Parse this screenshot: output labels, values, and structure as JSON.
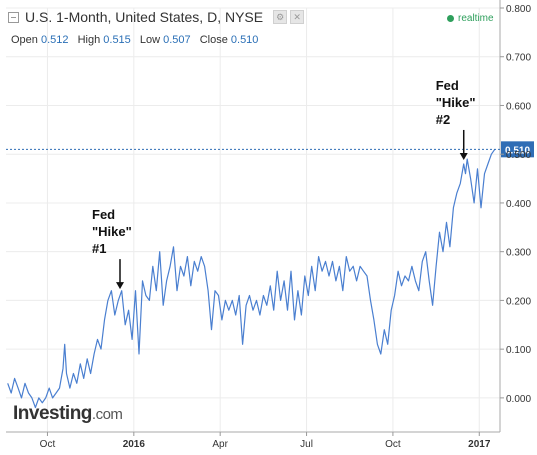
{
  "header": {
    "title": "U.S. 1-Month, United States, D, NYSE",
    "open_label": "Open",
    "open": "0.512",
    "high_label": "High",
    "high": "0.515",
    "low_label": "Low",
    "low": "0.507",
    "close_label": "Close",
    "close": "0.510",
    "realtime": "realtime"
  },
  "logo": {
    "brand": "Investing",
    "domain": ".com"
  },
  "annotations": [
    {
      "lines": [
        "Fed",
        "\"Hike\"",
        "#1"
      ],
      "x": 2015.96,
      "y": 0.215
    },
    {
      "lines": [
        "Fed",
        "\"Hike\"",
        "#2"
      ],
      "x": 2016.955,
      "y": 0.48
    }
  ],
  "colors": {
    "line": "#4a7fd0",
    "current": "#2f6db5",
    "axis": "#aaaaaa"
  },
  "chart_data": {
    "type": "line",
    "title": "U.S. 1-Month, United States, D, NYSE",
    "ylim": [
      -0.07,
      0.8
    ],
    "yticks": [
      0.0,
      0.1,
      0.2,
      0.3,
      0.4,
      0.5,
      0.6,
      0.7,
      0.8
    ],
    "ytick_labels": [
      "0.000",
      "0.100",
      "0.200",
      "0.300",
      "0.400",
      "0.500",
      "0.600",
      "0.700",
      "0.800"
    ],
    "xlim": [
      2015.63,
      2017.06
    ],
    "xticks": [
      2015.75,
      2016.0,
      2016.25,
      2016.5,
      2016.75,
      2017.0
    ],
    "xtick_labels": [
      "Oct",
      "2016",
      "Apr",
      "Jul",
      "Oct",
      "2017"
    ],
    "current_value": 0.51,
    "current_label": "0.510",
    "grid": true,
    "series": [
      {
        "values": [
          [
            2015.635,
            0.03
          ],
          [
            2015.645,
            0.01
          ],
          [
            2015.655,
            0.04
          ],
          [
            2015.665,
            0.02
          ],
          [
            2015.675,
            0.0
          ],
          [
            2015.685,
            0.03
          ],
          [
            2015.695,
            0.01
          ],
          [
            2015.705,
            0.0
          ],
          [
            2015.715,
            -0.02
          ],
          [
            2015.725,
            0.0
          ],
          [
            2015.735,
            -0.01
          ],
          [
            2015.745,
            0.0
          ],
          [
            2015.755,
            0.02
          ],
          [
            2015.765,
            0.0
          ],
          [
            2015.775,
            0.01
          ],
          [
            2015.785,
            0.02
          ],
          [
            2015.795,
            0.06
          ],
          [
            2015.8,
            0.11
          ],
          [
            2015.805,
            0.05
          ],
          [
            2015.815,
            0.02
          ],
          [
            2015.825,
            0.05
          ],
          [
            2015.835,
            0.03
          ],
          [
            2015.845,
            0.07
          ],
          [
            2015.855,
            0.04
          ],
          [
            2015.865,
            0.08
          ],
          [
            2015.875,
            0.05
          ],
          [
            2015.885,
            0.09
          ],
          [
            2015.895,
            0.12
          ],
          [
            2015.905,
            0.1
          ],
          [
            2015.915,
            0.16
          ],
          [
            2015.925,
            0.2
          ],
          [
            2015.935,
            0.22
          ],
          [
            2015.945,
            0.17
          ],
          [
            2015.955,
            0.2
          ],
          [
            2015.965,
            0.22
          ],
          [
            2015.975,
            0.15
          ],
          [
            2015.985,
            0.18
          ],
          [
            2015.995,
            0.12
          ],
          [
            2016.005,
            0.22
          ],
          [
            2016.015,
            0.09
          ],
          [
            2016.025,
            0.24
          ],
          [
            2016.035,
            0.21
          ],
          [
            2016.045,
            0.2
          ],
          [
            2016.055,
            0.27
          ],
          [
            2016.065,
            0.22
          ],
          [
            2016.075,
            0.3
          ],
          [
            2016.085,
            0.19
          ],
          [
            2016.095,
            0.24
          ],
          [
            2016.105,
            0.27
          ],
          [
            2016.115,
            0.31
          ],
          [
            2016.125,
            0.22
          ],
          [
            2016.135,
            0.27
          ],
          [
            2016.145,
            0.25
          ],
          [
            2016.155,
            0.29
          ],
          [
            2016.165,
            0.23
          ],
          [
            2016.175,
            0.28
          ],
          [
            2016.185,
            0.26
          ],
          [
            2016.195,
            0.29
          ],
          [
            2016.205,
            0.27
          ],
          [
            2016.215,
            0.22
          ],
          [
            2016.225,
            0.14
          ],
          [
            2016.235,
            0.22
          ],
          [
            2016.245,
            0.21
          ],
          [
            2016.255,
            0.16
          ],
          [
            2016.265,
            0.2
          ],
          [
            2016.275,
            0.18
          ],
          [
            2016.285,
            0.2
          ],
          [
            2016.295,
            0.17
          ],
          [
            2016.305,
            0.21
          ],
          [
            2016.315,
            0.11
          ],
          [
            2016.325,
            0.19
          ],
          [
            2016.335,
            0.21
          ],
          [
            2016.345,
            0.18
          ],
          [
            2016.355,
            0.2
          ],
          [
            2016.365,
            0.17
          ],
          [
            2016.375,
            0.21
          ],
          [
            2016.385,
            0.19
          ],
          [
            2016.395,
            0.23
          ],
          [
            2016.405,
            0.18
          ],
          [
            2016.415,
            0.26
          ],
          [
            2016.425,
            0.2
          ],
          [
            2016.435,
            0.24
          ],
          [
            2016.445,
            0.18
          ],
          [
            2016.455,
            0.26
          ],
          [
            2016.465,
            0.16
          ],
          [
            2016.475,
            0.22
          ],
          [
            2016.485,
            0.17
          ],
          [
            2016.495,
            0.25
          ],
          [
            2016.505,
            0.21
          ],
          [
            2016.515,
            0.27
          ],
          [
            2016.525,
            0.22
          ],
          [
            2016.535,
            0.29
          ],
          [
            2016.545,
            0.26
          ],
          [
            2016.555,
            0.28
          ],
          [
            2016.565,
            0.25
          ],
          [
            2016.575,
            0.28
          ],
          [
            2016.585,
            0.24
          ],
          [
            2016.595,
            0.27
          ],
          [
            2016.605,
            0.22
          ],
          [
            2016.615,
            0.29
          ],
          [
            2016.625,
            0.26
          ],
          [
            2016.635,
            0.27
          ],
          [
            2016.645,
            0.24
          ],
          [
            2016.655,
            0.27
          ],
          [
            2016.665,
            0.26
          ],
          [
            2016.675,
            0.25
          ],
          [
            2016.685,
            0.2
          ],
          [
            2016.695,
            0.16
          ],
          [
            2016.705,
            0.11
          ],
          [
            2016.715,
            0.09
          ],
          [
            2016.725,
            0.14
          ],
          [
            2016.735,
            0.11
          ],
          [
            2016.745,
            0.18
          ],
          [
            2016.755,
            0.21
          ],
          [
            2016.765,
            0.26
          ],
          [
            2016.775,
            0.23
          ],
          [
            2016.785,
            0.25
          ],
          [
            2016.795,
            0.24
          ],
          [
            2016.805,
            0.27
          ],
          [
            2016.815,
            0.24
          ],
          [
            2016.825,
            0.22
          ],
          [
            2016.835,
            0.28
          ],
          [
            2016.845,
            0.3
          ],
          [
            2016.855,
            0.24
          ],
          [
            2016.865,
            0.19
          ],
          [
            2016.875,
            0.27
          ],
          [
            2016.885,
            0.34
          ],
          [
            2016.895,
            0.3
          ],
          [
            2016.905,
            0.36
          ],
          [
            2016.915,
            0.31
          ],
          [
            2016.925,
            0.39
          ],
          [
            2016.935,
            0.42
          ],
          [
            2016.945,
            0.44
          ],
          [
            2016.955,
            0.48
          ],
          [
            2016.96,
            0.46
          ],
          [
            2016.965,
            0.49
          ],
          [
            2016.975,
            0.45
          ],
          [
            2016.985,
            0.4
          ],
          [
            2016.995,
            0.47
          ],
          [
            2017.005,
            0.39
          ],
          [
            2017.015,
            0.46
          ],
          [
            2017.025,
            0.48
          ],
          [
            2017.035,
            0.5
          ],
          [
            2017.045,
            0.51
          ]
        ]
      }
    ]
  }
}
